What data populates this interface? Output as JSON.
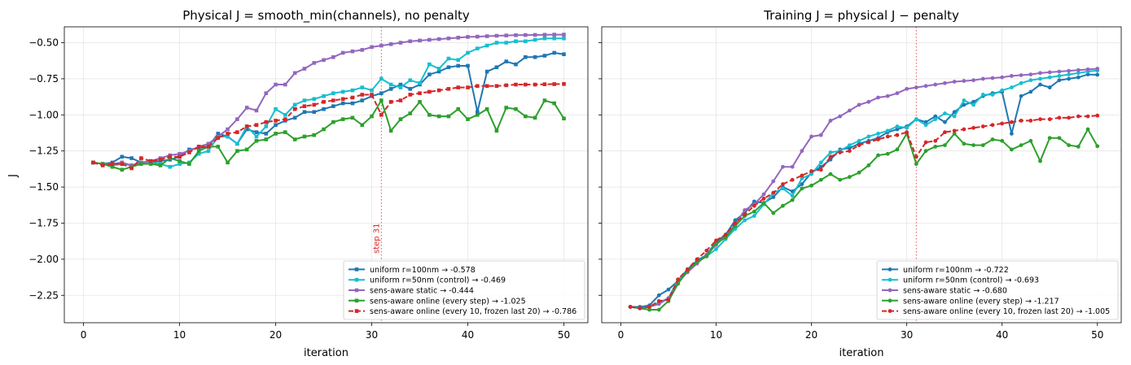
{
  "chart_data": [
    {
      "type": "line",
      "title": "Physical J = smooth_min(channels), no penalty",
      "xlabel": "iteration",
      "ylabel": "J",
      "xlim": [
        -2,
        52.5
      ],
      "ylim": [
        -2.44,
        -0.39
      ],
      "xticks": [
        0,
        10,
        20,
        30,
        40,
        50
      ],
      "yticks": [
        -2.25,
        -2.0,
        -1.75,
        -1.5,
        -1.25,
        -1.0,
        -0.75,
        -0.5
      ],
      "ytick_labels": [
        "−2.25",
        "−2.00",
        "−1.75",
        "−1.50",
        "−1.25",
        "−1.00",
        "−0.75",
        "−0.50"
      ],
      "grid": true,
      "legend_position": "lower-right",
      "vline": {
        "x": 31,
        "label": "step 31",
        "color": "#d62728"
      },
      "marker": "square",
      "x": [
        1,
        2,
        3,
        4,
        5,
        6,
        7,
        8,
        9,
        10,
        11,
        12,
        13,
        14,
        15,
        16,
        17,
        18,
        19,
        20,
        21,
        22,
        23,
        24,
        25,
        26,
        27,
        28,
        29,
        30,
        31,
        32,
        33,
        34,
        35,
        36,
        37,
        38,
        39,
        40,
        41,
        42,
        43,
        44,
        45,
        46,
        47,
        48,
        49,
        50
      ],
      "series": [
        {
          "name": "uniform r=100nm → -0.578",
          "color": "#1f77b4",
          "dashed": false,
          "values": [
            -1.33,
            -1.34,
            -1.33,
            -1.29,
            -1.3,
            -1.33,
            -1.33,
            -1.32,
            -1.31,
            -1.29,
            -1.24,
            -1.23,
            -1.22,
            -1.13,
            -1.15,
            -1.2,
            -1.1,
            -1.12,
            -1.13,
            -1.07,
            -1.04,
            -1.02,
            -0.98,
            -0.98,
            -0.96,
            -0.94,
            -0.92,
            -0.92,
            -0.9,
            -0.87,
            -0.85,
            -0.82,
            -0.79,
            -0.82,
            -0.79,
            -0.72,
            -0.7,
            -0.67,
            -0.66,
            -0.66,
            -0.98,
            -0.7,
            -0.67,
            -0.63,
            -0.65,
            -0.6,
            -0.6,
            -0.59,
            -0.57,
            -0.58
          ]
        },
        {
          "name": "uniform r=50nm (control) → -0.469",
          "color": "#17becf",
          "dashed": false,
          "values": [
            -1.33,
            -1.34,
            -1.35,
            -1.34,
            -1.35,
            -1.33,
            -1.33,
            -1.34,
            -1.36,
            -1.34,
            -1.33,
            -1.27,
            -1.25,
            -1.15,
            -1.15,
            -1.2,
            -1.08,
            -1.15,
            -1.08,
            -0.96,
            -1.0,
            -0.93,
            -0.9,
            -0.89,
            -0.87,
            -0.85,
            -0.84,
            -0.83,
            -0.81,
            -0.83,
            -0.75,
            -0.79,
            -0.81,
            -0.76,
            -0.78,
            -0.65,
            -0.68,
            -0.61,
            -0.62,
            -0.57,
            -0.54,
            -0.52,
            -0.5,
            -0.5,
            -0.49,
            -0.49,
            -0.48,
            -0.47,
            -0.47,
            -0.47
          ]
        },
        {
          "name": "sens-aware static → -0.444",
          "color": "#9467bd",
          "dashed": false,
          "values": [
            -1.33,
            -1.34,
            -1.34,
            -1.33,
            -1.35,
            -1.33,
            -1.32,
            -1.3,
            -1.28,
            -1.27,
            -1.25,
            -1.22,
            -1.2,
            -1.15,
            -1.1,
            -1.03,
            -0.95,
            -0.97,
            -0.85,
            -0.79,
            -0.79,
            -0.71,
            -0.68,
            -0.64,
            -0.62,
            -0.6,
            -0.57,
            -0.56,
            -0.55,
            -0.53,
            -0.52,
            -0.51,
            -0.5,
            -0.49,
            -0.485,
            -0.48,
            -0.475,
            -0.47,
            -0.465,
            -0.46,
            -0.458,
            -0.455,
            -0.452,
            -0.45,
            -0.448,
            -0.447,
            -0.446,
            -0.445,
            -0.444,
            -0.444
          ]
        },
        {
          "name": "sens-aware online (every step) → -1.025",
          "color": "#2ca02c",
          "dashed": false,
          "values": [
            -1.33,
            -1.34,
            -1.36,
            -1.38,
            -1.36,
            -1.34,
            -1.34,
            -1.35,
            -1.3,
            -1.32,
            -1.34,
            -1.25,
            -1.22,
            -1.22,
            -1.33,
            -1.25,
            -1.24,
            -1.18,
            -1.17,
            -1.13,
            -1.12,
            -1.17,
            -1.15,
            -1.14,
            -1.1,
            -1.05,
            -1.03,
            -1.02,
            -1.07,
            -1.01,
            -0.9,
            -1.11,
            -1.03,
            -0.99,
            -0.91,
            -1.0,
            -1.01,
            -1.01,
            -0.96,
            -1.03,
            -1.0,
            -0.96,
            -1.11,
            -0.95,
            -0.96,
            -1.01,
            -1.02,
            -0.9,
            -0.92,
            -1.025
          ]
        },
        {
          "name": "sens-aware online (every 10, frozen last 20) → -0.786",
          "color": "#d62728",
          "dashed": true,
          "values": [
            -1.33,
            -1.35,
            -1.34,
            -1.34,
            -1.37,
            -1.3,
            -1.32,
            -1.31,
            -1.29,
            -1.29,
            -1.26,
            -1.22,
            -1.22,
            -1.16,
            -1.13,
            -1.12,
            -1.08,
            -1.07,
            -1.05,
            -1.04,
            -1.03,
            -0.96,
            -0.94,
            -0.93,
            -0.91,
            -0.9,
            -0.89,
            -0.88,
            -0.86,
            -0.86,
            -1.0,
            -0.91,
            -0.9,
            -0.86,
            -0.85,
            -0.84,
            -0.83,
            -0.82,
            -0.81,
            -0.81,
            -0.8,
            -0.8,
            -0.8,
            -0.795,
            -0.79,
            -0.79,
            -0.79,
            -0.788,
            -0.787,
            -0.786
          ]
        }
      ]
    },
    {
      "type": "line",
      "title": "Training J = physical J − penalty",
      "xlabel": "iteration",
      "ylabel": "",
      "xlim": [
        -2,
        52.5
      ],
      "ylim": [
        -2.44,
        -0.39
      ],
      "xticks": [
        0,
        10,
        20,
        30,
        40,
        50
      ],
      "yticks": [
        -2.25,
        -2.0,
        -1.75,
        -1.5,
        -1.25,
        -1.0,
        -0.75,
        -0.5
      ],
      "ytick_labels": [],
      "grid": true,
      "legend_position": "lower-right",
      "vline": {
        "x": 31,
        "label": "",
        "color": "#d62728"
      },
      "marker": "circle",
      "x": [
        1,
        2,
        3,
        4,
        5,
        6,
        7,
        8,
        9,
        10,
        11,
        12,
        13,
        14,
        15,
        16,
        17,
        18,
        19,
        20,
        21,
        22,
        23,
        24,
        25,
        26,
        27,
        28,
        29,
        30,
        31,
        32,
        33,
        34,
        35,
        36,
        37,
        38,
        39,
        40,
        41,
        42,
        43,
        44,
        45,
        46,
        47,
        48,
        49,
        50
      ],
      "series": [
        {
          "name": "uniform r=100nm → -0.722",
          "color": "#1f77b4",
          "dashed": false,
          "values": [
            -2.33,
            -2.33,
            -2.32,
            -2.25,
            -2.21,
            -2.15,
            -2.07,
            -2.01,
            -1.97,
            -1.88,
            -1.83,
            -1.73,
            -1.68,
            -1.6,
            -1.61,
            -1.57,
            -1.5,
            -1.53,
            -1.48,
            -1.4,
            -1.36,
            -1.31,
            -1.24,
            -1.23,
            -1.2,
            -1.18,
            -1.16,
            -1.12,
            -1.1,
            -1.08,
            -1.03,
            -1.05,
            -1.01,
            -1.05,
            -0.98,
            -0.93,
            -0.91,
            -0.87,
            -0.85,
            -0.84,
            -1.13,
            -0.87,
            -0.84,
            -0.79,
            -0.81,
            -0.76,
            -0.75,
            -0.74,
            -0.72,
            -0.722
          ]
        },
        {
          "name": "uniform r=50nm (control) → -0.693",
          "color": "#17becf",
          "dashed": false,
          "values": [
            -2.33,
            -2.34,
            -2.33,
            -2.3,
            -2.27,
            -2.14,
            -2.09,
            -2.02,
            -1.98,
            -1.93,
            -1.86,
            -1.79,
            -1.73,
            -1.7,
            -1.62,
            -1.54,
            -1.51,
            -1.56,
            -1.44,
            -1.41,
            -1.33,
            -1.26,
            -1.25,
            -1.21,
            -1.18,
            -1.15,
            -1.13,
            -1.11,
            -1.08,
            -1.09,
            -1.03,
            -1.07,
            -1.03,
            -0.99,
            -1.01,
            -0.9,
            -0.93,
            -0.86,
            -0.86,
            -0.83,
            -0.81,
            -0.78,
            -0.76,
            -0.75,
            -0.74,
            -0.73,
            -0.72,
            -0.71,
            -0.7,
            -0.693
          ]
        },
        {
          "name": "sens-aware static → -0.680",
          "color": "#9467bd",
          "dashed": false,
          "values": [
            -2.33,
            -2.34,
            -2.33,
            -2.31,
            -2.27,
            -2.16,
            -2.09,
            -2.03,
            -1.97,
            -1.9,
            -1.84,
            -1.76,
            -1.66,
            -1.62,
            -1.55,
            -1.46,
            -1.36,
            -1.36,
            -1.25,
            -1.15,
            -1.14,
            -1.04,
            -1.01,
            -0.97,
            -0.93,
            -0.91,
            -0.88,
            -0.87,
            -0.85,
            -0.82,
            -0.81,
            -0.8,
            -0.79,
            -0.78,
            -0.77,
            -0.765,
            -0.76,
            -0.75,
            -0.745,
            -0.74,
            -0.73,
            -0.725,
            -0.72,
            -0.71,
            -0.705,
            -0.7,
            -0.695,
            -0.69,
            -0.685,
            -0.68
          ]
        },
        {
          "name": "sens-aware online (every step) → -1.217",
          "color": "#2ca02c",
          "dashed": false,
          "values": [
            -2.33,
            -2.34,
            -2.35,
            -2.35,
            -2.29,
            -2.17,
            -2.08,
            -2.02,
            -1.98,
            -1.89,
            -1.85,
            -1.77,
            -1.7,
            -1.67,
            -1.61,
            -1.68,
            -1.63,
            -1.59,
            -1.51,
            -1.49,
            -1.45,
            -1.41,
            -1.45,
            -1.43,
            -1.4,
            -1.35,
            -1.28,
            -1.27,
            -1.24,
            -1.13,
            -1.34,
            -1.25,
            -1.22,
            -1.21,
            -1.13,
            -1.2,
            -1.21,
            -1.21,
            -1.17,
            -1.18,
            -1.24,
            -1.21,
            -1.18,
            -1.32,
            -1.16,
            -1.16,
            -1.21,
            -1.22,
            -1.1,
            -1.217
          ]
        },
        {
          "name": "sens-aware online (every 10, frozen last 20) → -1.005",
          "color": "#d62728",
          "dashed": true,
          "values": [
            -2.33,
            -2.34,
            -2.33,
            -2.29,
            -2.28,
            -2.14,
            -2.07,
            -2.0,
            -1.94,
            -1.87,
            -1.83,
            -1.75,
            -1.69,
            -1.63,
            -1.58,
            -1.54,
            -1.48,
            -1.45,
            -1.42,
            -1.39,
            -1.38,
            -1.29,
            -1.26,
            -1.25,
            -1.21,
            -1.19,
            -1.17,
            -1.15,
            -1.14,
            -1.12,
            -1.29,
            -1.19,
            -1.18,
            -1.12,
            -1.11,
            -1.1,
            -1.09,
            -1.08,
            -1.07,
            -1.06,
            -1.05,
            -1.04,
            -1.04,
            -1.03,
            -1.03,
            -1.02,
            -1.02,
            -1.01,
            -1.01,
            -1.005
          ]
        }
      ]
    }
  ]
}
